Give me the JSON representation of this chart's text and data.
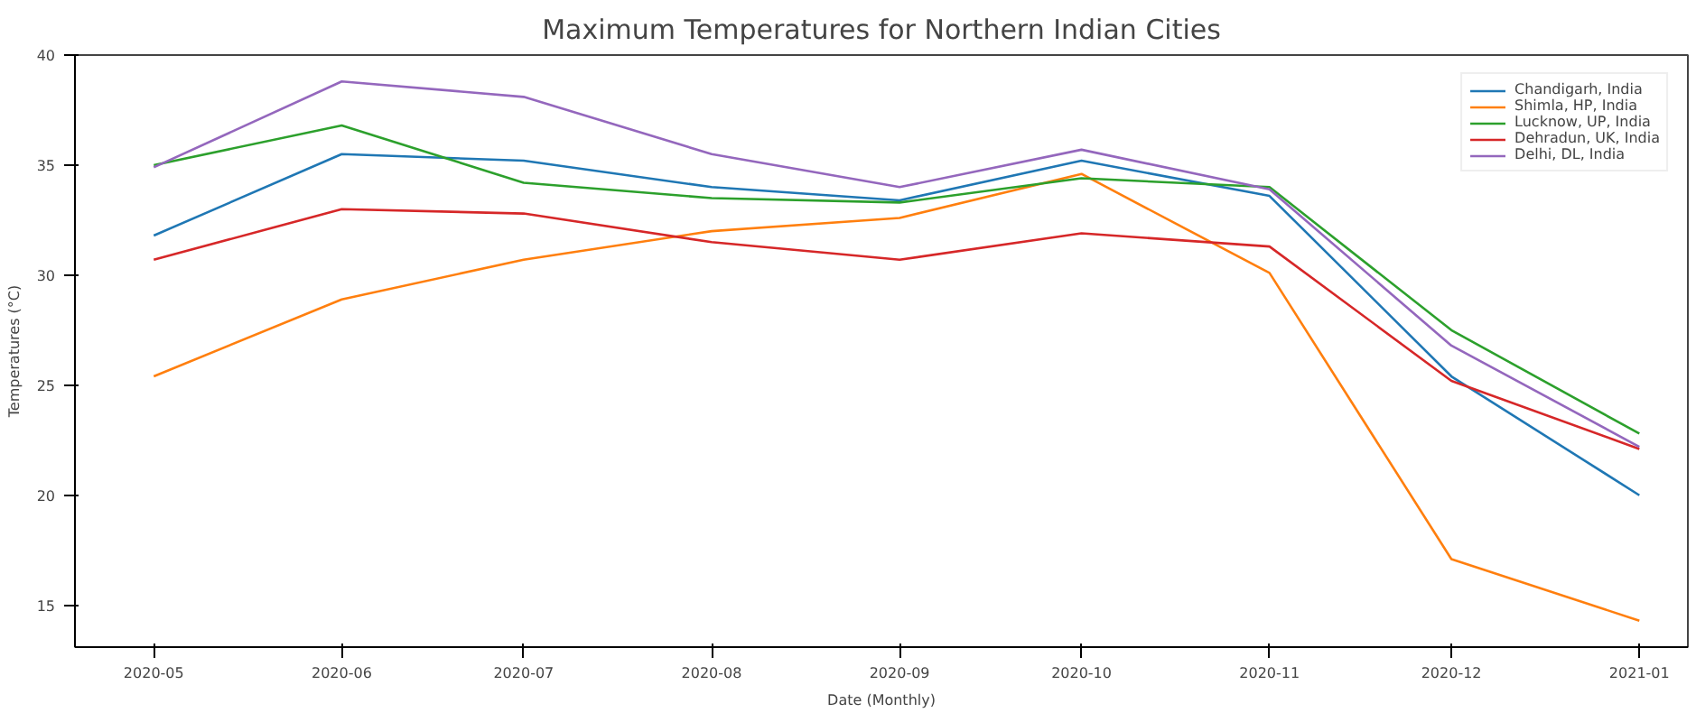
{
  "chart_data": {
    "type": "line",
    "title": "Maximum Temperatures for Northern Indian Cities",
    "xlabel": "Date (Monthly)",
    "ylabel": "Temperatures (°C)",
    "x": [
      "2020-05",
      "2020-06",
      "2020-07",
      "2020-08",
      "2020-09",
      "2020-10",
      "2020-11",
      "2020-12",
      "2021-01"
    ],
    "series": [
      {
        "name": "Chandigarh, India",
        "color": "#1f77b4",
        "values": [
          31.8,
          35.5,
          35.2,
          34.0,
          33.4,
          35.2,
          33.6,
          25.4,
          20.0
        ]
      },
      {
        "name": "Shimla, HP, India",
        "color": "#ff7f0e",
        "values": [
          25.4,
          28.9,
          30.7,
          32.0,
          32.6,
          34.6,
          30.1,
          17.1,
          14.3
        ]
      },
      {
        "name": "Lucknow, UP, India",
        "color": "#2ca02c",
        "values": [
          35.0,
          36.8,
          34.2,
          33.5,
          33.3,
          34.4,
          34.0,
          27.5,
          22.8
        ]
      },
      {
        "name": "Dehradun, UK, India",
        "color": "#d62728",
        "values": [
          30.7,
          33.0,
          32.8,
          31.5,
          30.7,
          31.9,
          31.3,
          25.2,
          22.1
        ]
      },
      {
        "name": "Delhi, DL, India",
        "color": "#9467bd",
        "values": [
          34.9,
          38.8,
          38.1,
          35.5,
          34.0,
          35.7,
          33.9,
          26.8,
          22.2
        ]
      }
    ],
    "xlim": [
      "2020-04-18",
      "2021-01-09"
    ],
    "ylim": [
      13.1,
      40
    ],
    "xticks": [
      "2020-05",
      "2020-06",
      "2020-07",
      "2020-08",
      "2020-09",
      "2020-10",
      "2020-11",
      "2020-12",
      "2021-01"
    ],
    "yticks": [
      15,
      20,
      25,
      30,
      35,
      40
    ],
    "grid": false,
    "legend": "top right",
    "marker": "none",
    "line_style": "solid"
  }
}
